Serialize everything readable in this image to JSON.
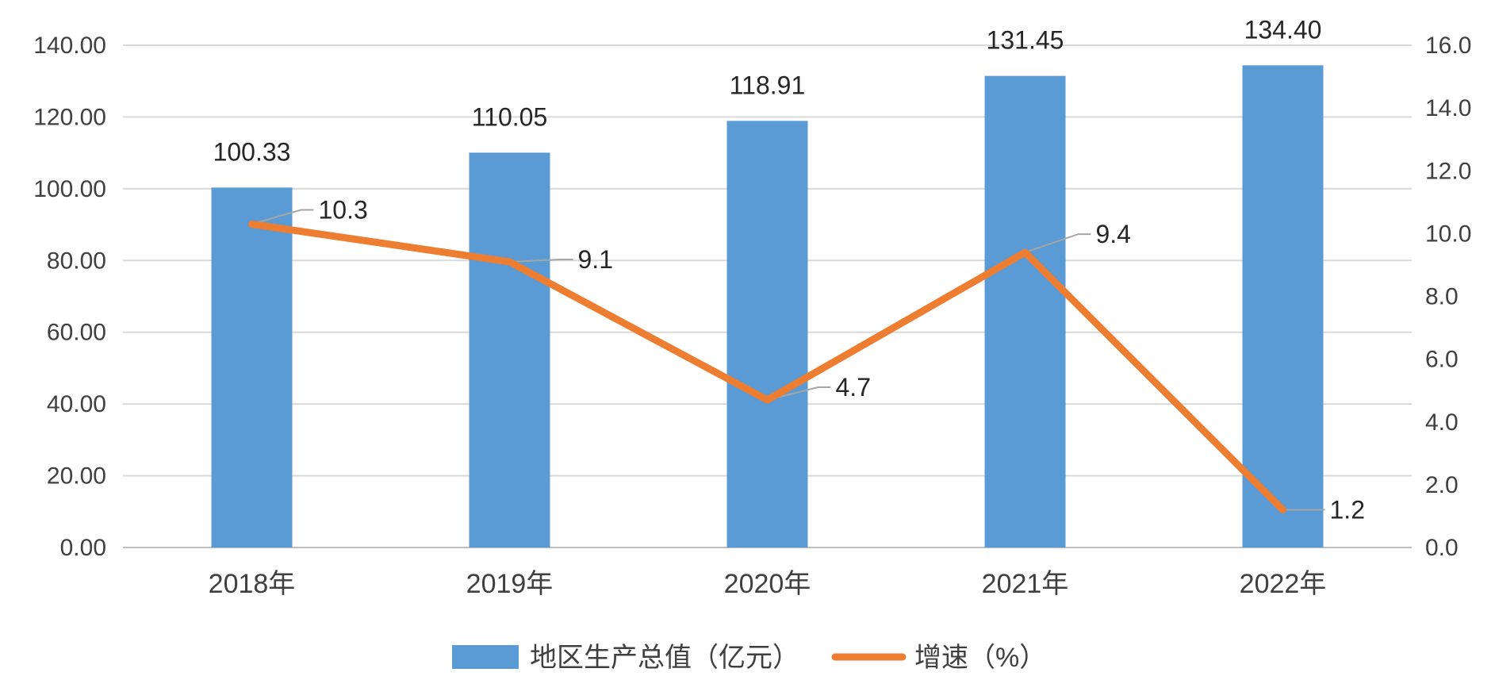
{
  "chart_data": {
    "type": "bar",
    "title": "",
    "categories": [
      "2018年",
      "2019年",
      "2020年",
      "2021年",
      "2022年"
    ],
    "series": [
      {
        "name": "地区生产总值（亿元）",
        "type": "bar",
        "axis": "left",
        "color": "#5B9BD5",
        "values": [
          100.33,
          110.05,
          118.91,
          131.45,
          134.4
        ],
        "labels": [
          "100.33",
          "110.05",
          "118.91",
          "131.45",
          "134.40"
        ]
      },
      {
        "name": "增速（%）",
        "type": "line",
        "axis": "right",
        "color": "#ED7D31",
        "values": [
          10.3,
          9.1,
          4.7,
          9.4,
          1.2
        ],
        "labels": [
          "10.3",
          "9.1",
          "4.7",
          "9.4",
          "1.2"
        ]
      }
    ],
    "y_left": {
      "min": 0,
      "max": 140,
      "ticks": [
        "0.00",
        "20.00",
        "40.00",
        "60.00",
        "80.00",
        "100.00",
        "120.00",
        "140.00"
      ]
    },
    "y_right": {
      "min": 0,
      "max": 16,
      "ticks": [
        "0.0",
        "2.0",
        "4.0",
        "6.0",
        "8.0",
        "10.0",
        "12.0",
        "14.0",
        "16.0"
      ]
    },
    "grid": true,
    "legend_position": "bottom"
  }
}
